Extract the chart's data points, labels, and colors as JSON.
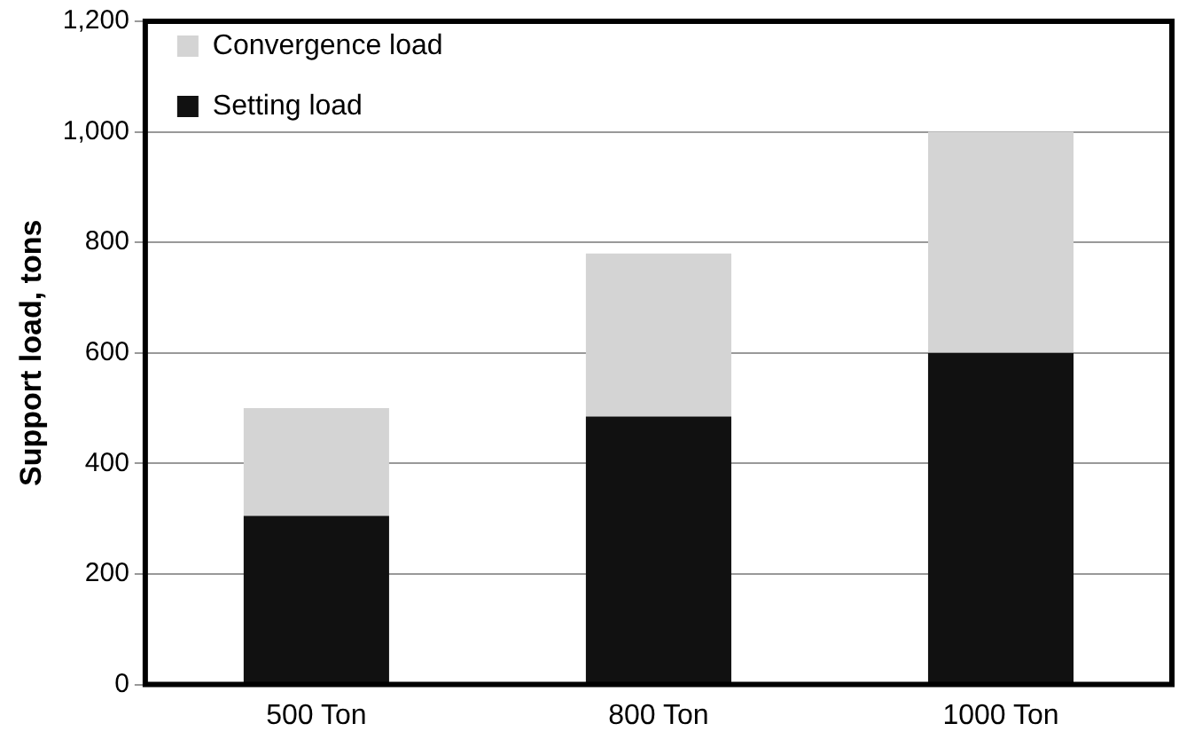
{
  "chart_data": {
    "type": "bar",
    "stacked": true,
    "ylabel": "Support load, tons",
    "categories": [
      "500 Ton",
      "800 Ton",
      "1000 Ton"
    ],
    "series": [
      {
        "name": "Setting load",
        "color": "#111111",
        "values": [
          305,
          485,
          600
        ]
      },
      {
        "name": "Convergence load",
        "color": "#d4d4d4",
        "values": [
          195,
          295,
          400
        ]
      }
    ],
    "ylim": [
      0,
      1200
    ],
    "yticks": [
      0,
      200,
      400,
      600,
      800,
      {
        "value": 1000,
        "label": "1,000"
      },
      {
        "value": 1200,
        "label": "1,200"
      }
    ],
    "grid": "y",
    "legend": "top left"
  }
}
